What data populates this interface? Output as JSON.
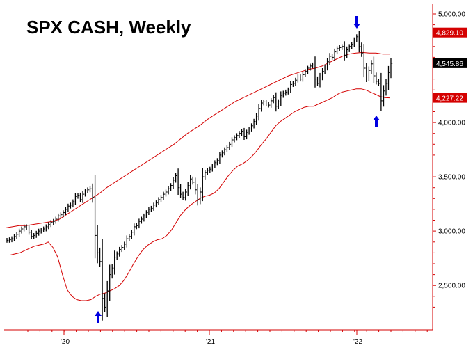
{
  "chart_data": {
    "type": "ohlc",
    "title": "SPX CASH, Weekly",
    "x_tick_labels": [
      "'20",
      "'21",
      "'22"
    ],
    "y_tick_labels": [
      "2,500.00",
      "3,000.00",
      "3,500.00",
      "4,000.00",
      "5,000.00"
    ],
    "y_ticks": [
      2500,
      3000,
      3500,
      4000,
      5000
    ],
    "ylim": [
      2130,
      5050
    ],
    "price_labels": [
      {
        "text": "4,829.10",
        "value": 4829.1,
        "bg": "#d40000",
        "fg": "#ffffff"
      },
      {
        "text": "4,545.86",
        "value": 4545.86,
        "bg": "#000000",
        "fg": "#ffffff"
      },
      {
        "text": "4,227.22",
        "value": 4227.22,
        "bg": "#d40000",
        "fg": "#ffffff"
      }
    ],
    "bar_closes": [
      2915,
      2920,
      2930,
      2950,
      2970,
      3000,
      3020,
      3040,
      3030,
      2990,
      2950,
      2960,
      2980,
      3000,
      3010,
      3020,
      3040,
      3060,
      3080,
      3090,
      3110,
      3140,
      3150,
      3170,
      3200,
      3230,
      3240,
      3270,
      3320,
      3330,
      3290,
      3340,
      3370,
      3380,
      3390,
      3310,
      2960,
      2800,
      2720,
      2380,
      2300,
      2450,
      2600,
      2660,
      2760,
      2790,
      2830,
      2850,
      2880,
      2930,
      2950,
      2990,
      3040,
      3050,
      3090,
      3110,
      3140,
      3170,
      3200,
      3210,
      3240,
      3260,
      3290,
      3310,
      3340,
      3360,
      3390,
      3420,
      3470,
      3510,
      3400,
      3340,
      3310,
      3360,
      3420,
      3480,
      3450,
      3380,
      3290,
      3360,
      3500,
      3540,
      3560,
      3570,
      3600,
      3630,
      3650,
      3700,
      3720,
      3750,
      3770,
      3800,
      3840,
      3860,
      3880,
      3900,
      3920,
      3870,
      3910,
      3940,
      3970,
      4010,
      4060,
      4130,
      4180,
      4190,
      4170,
      4160,
      4200,
      4230,
      4150,
      4190,
      4250,
      4270,
      4280,
      4300,
      4350,
      4360,
      4390,
      4420,
      4400,
      4440,
      4470,
      4500,
      4520,
      4530,
      4400,
      4360,
      4420,
      4470,
      4510,
      4560,
      4610,
      4600,
      4650,
      4680,
      4690,
      4700,
      4620,
      4670,
      4700,
      4720,
      4760,
      4790,
      4700,
      4640,
      4500,
      4420,
      4480,
      4540,
      4430,
      4380,
      4360,
      4200,
      4290,
      4360,
      4460,
      4545
    ],
    "bands": {
      "upper": [
        [
          2915,
          3030
        ],
        [
          2930,
          3040
        ],
        [
          2960,
          3050
        ],
        [
          2980,
          3050
        ],
        [
          3000,
          3060
        ],
        [
          3010,
          3070
        ],
        [
          3020,
          3080
        ],
        [
          3030,
          3090
        ],
        [
          3040,
          3110
        ],
        [
          3045,
          3150
        ],
        [
          3045,
          3190
        ],
        [
          3045,
          3230
        ],
        [
          3045,
          3270
        ],
        [
          3050,
          3310
        ],
        [
          3050,
          3350
        ],
        [
          3055,
          3400
        ],
        [
          3055,
          3440
        ],
        [
          3040,
          3480
        ],
        [
          3030,
          3520
        ],
        [
          3035,
          3560
        ],
        [
          3080,
          3600
        ],
        [
          3150,
          3640
        ],
        [
          3220,
          3680
        ],
        [
          3300,
          3720
        ],
        [
          3370,
          3760
        ],
        [
          3420,
          3800
        ],
        [
          3470,
          3850
        ],
        [
          3510,
          3900
        ],
        [
          3540,
          3940
        ],
        [
          3570,
          3980
        ],
        [
          3600,
          4030
        ],
        [
          3650,
          4070
        ],
        [
          3700,
          4110
        ],
        [
          3740,
          4150
        ],
        [
          3800,
          4190
        ],
        [
          3870,
          4220
        ],
        [
          3940,
          4250
        ],
        [
          4000,
          4280
        ],
        [
          4070,
          4310
        ],
        [
          4130,
          4340
        ],
        [
          4190,
          4370
        ],
        [
          4240,
          4400
        ],
        [
          4290,
          4430
        ],
        [
          4350,
          4450
        ],
        [
          4420,
          4470
        ],
        [
          4490,
          4490
        ],
        [
          4560,
          4500
        ],
        [
          4620,
          4520
        ],
        [
          4680,
          4550
        ],
        [
          4740,
          4580
        ],
        [
          4790,
          4610
        ],
        [
          4830,
          4630
        ],
        [
          4860,
          4640
        ],
        [
          4870,
          4645
        ],
        [
          4870,
          4640
        ],
        [
          4860,
          4640
        ],
        [
          4850,
          4630
        ],
        [
          4840,
          4630
        ]
      ],
      "lower": [
        [
          2915,
          2780
        ],
        [
          2940,
          2780
        ],
        [
          2970,
          2790
        ],
        [
          3000,
          2800
        ],
        [
          3030,
          2820
        ],
        [
          3060,
          2840
        ],
        [
          3090,
          2860
        ],
        [
          3110,
          2870
        ],
        [
          3125,
          2880
        ],
        [
          3135,
          2900
        ],
        [
          3140,
          2850
        ],
        [
          3145,
          2760
        ],
        [
          3150,
          2600
        ],
        [
          3155,
          2460
        ],
        [
          3160,
          2400
        ],
        [
          3170,
          2370
        ],
        [
          3180,
          2360
        ],
        [
          3200,
          2360
        ],
        [
          3220,
          2370
        ],
        [
          3240,
          2400
        ],
        [
          3260,
          2420
        ],
        [
          3280,
          2430
        ],
        [
          3300,
          2450
        ],
        [
          3320,
          2470
        ],
        [
          3340,
          2500
        ],
        [
          3360,
          2550
        ],
        [
          3380,
          2620
        ],
        [
          3400,
          2700
        ],
        [
          3420,
          2770
        ],
        [
          3440,
          2830
        ],
        [
          3460,
          2870
        ],
        [
          3480,
          2900
        ],
        [
          3500,
          2920
        ],
        [
          3520,
          2930
        ],
        [
          3540,
          2960
        ],
        [
          3560,
          3010
        ],
        [
          3580,
          3080
        ],
        [
          3600,
          3150
        ],
        [
          3620,
          3200
        ],
        [
          3640,
          3240
        ],
        [
          3660,
          3270
        ],
        [
          3680,
          3300
        ],
        [
          3700,
          3320
        ],
        [
          3720,
          3330
        ],
        [
          3740,
          3350
        ],
        [
          3760,
          3390
        ],
        [
          3780,
          3450
        ],
        [
          3800,
          3510
        ],
        [
          3820,
          3560
        ],
        [
          3840,
          3600
        ],
        [
          3860,
          3620
        ],
        [
          3880,
          3650
        ],
        [
          3900,
          3690
        ],
        [
          3920,
          3740
        ],
        [
          3940,
          3800
        ],
        [
          3960,
          3850
        ],
        [
          3980,
          3910
        ],
        [
          4000,
          3970
        ],
        [
          4020,
          4010
        ],
        [
          4040,
          4040
        ],
        [
          4060,
          4070
        ],
        [
          4080,
          4100
        ],
        [
          4100,
          4120
        ],
        [
          4120,
          4140
        ],
        [
          4140,
          4150
        ],
        [
          4160,
          4150
        ],
        [
          4180,
          4170
        ],
        [
          4200,
          4190
        ],
        [
          4220,
          4210
        ],
        [
          4240,
          4230
        ],
        [
          4260,
          4260
        ],
        [
          4280,
          4280
        ],
        [
          4300,
          4290
        ],
        [
          4320,
          4300
        ],
        [
          4340,
          4310
        ],
        [
          4360,
          4310
        ],
        [
          4380,
          4300
        ],
        [
          4400,
          4280
        ],
        [
          4420,
          4260
        ],
        [
          4440,
          4240
        ],
        [
          4460,
          4230
        ],
        [
          4480,
          4227
        ]
      ]
    },
    "arrows": [
      {
        "name": "low-2020",
        "direction": "up",
        "color": "#0000e0"
      },
      {
        "name": "top-2022",
        "direction": "down",
        "color": "#0000e0"
      },
      {
        "name": "low-2022",
        "direction": "up",
        "color": "#0000e0"
      }
    ],
    "colors": {
      "bars": "#000000",
      "bands": "#d40000",
      "axis": "#d40000",
      "arrow": "#0000e0"
    }
  }
}
